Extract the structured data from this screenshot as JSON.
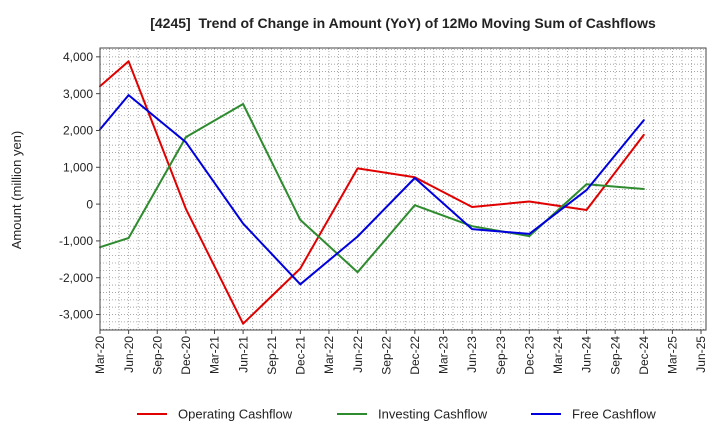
{
  "chart_data": {
    "type": "line",
    "title": "[4245]  Trend of Change in Amount (YoY) of 12Mo Moving Sum of Cashflows",
    "xlabel": "",
    "ylabel": "Amount (million yen)",
    "categories": [
      "Mar-20",
      "Jun-20",
      "Sep-20",
      "Dec-20",
      "Mar-21",
      "Jun-21",
      "Sep-21",
      "Dec-21",
      "Mar-22",
      "Jun-22",
      "Sep-22",
      "Dec-22",
      "Mar-23",
      "Jun-23",
      "Sep-23",
      "Dec-23",
      "Mar-24",
      "Jun-24",
      "Sep-24",
      "Dec-24",
      "Mar-25",
      "Jun-25"
    ],
    "yticks": [
      4000,
      3000,
      2000,
      1000,
      0,
      -1000,
      -2000,
      -3000
    ],
    "ytick_labels": [
      "4,000",
      "3,000",
      "2,000",
      "1,000",
      "0",
      "-1,000",
      "-2,000",
      "-3,000"
    ],
    "ylim": [
      -3420,
      4240
    ],
    "grid": true,
    "legend": "bottom",
    "series": [
      {
        "name": "Operating Cashflow",
        "color": "#e00000",
        "values": [
          3200,
          3880,
          null,
          -130,
          null,
          -3250,
          null,
          -1750,
          null,
          970,
          null,
          730,
          null,
          -80,
          null,
          70,
          null,
          -160,
          null,
          1880,
          null,
          null
        ]
      },
      {
        "name": "Investing Cashflow",
        "color": "#2e8b2e",
        "values": [
          -1170,
          -920,
          null,
          1820,
          null,
          2720,
          null,
          -430,
          null,
          -1850,
          null,
          -30,
          null,
          -600,
          null,
          -870,
          null,
          540,
          null,
          410,
          null,
          null
        ]
      },
      {
        "name": "Free Cashflow",
        "color": "#0000dd",
        "values": [
          2030,
          2960,
          null,
          1680,
          null,
          -530,
          null,
          -2180,
          null,
          -880,
          null,
          710,
          null,
          -680,
          null,
          -810,
          null,
          380,
          null,
          2280,
          null,
          null
        ]
      }
    ]
  }
}
